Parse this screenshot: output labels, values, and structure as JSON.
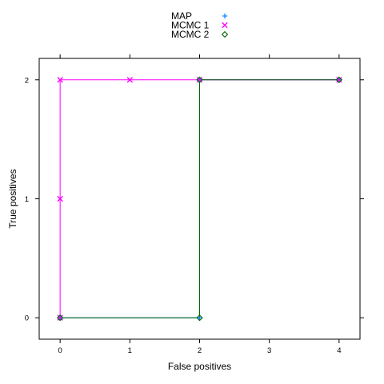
{
  "chart_data": {
    "type": "line",
    "xlabel": "False positives",
    "ylabel": "True positives",
    "xlim": [
      -0.3,
      4.3
    ],
    "ylim": [
      -0.18,
      2.18
    ],
    "x_ticks": [
      0,
      1,
      2,
      3,
      4
    ],
    "y_ticks": [
      0,
      1,
      2
    ],
    "x_tick_labels": [
      "0",
      "1",
      "2",
      "3",
      "4"
    ],
    "y_tick_labels": [
      "0",
      "1",
      "2"
    ],
    "grid": false,
    "legend_position": "top",
    "legend": [
      "MAP",
      "MCMC 1",
      "MCMC 2"
    ],
    "series": [
      {
        "name": "MAP",
        "color": "#0080ff",
        "marker": "plus",
        "points": [
          [
            0,
            0
          ],
          [
            2,
            0
          ],
          [
            2,
            2
          ],
          [
            4,
            2
          ]
        ]
      },
      {
        "name": "MCMC 1",
        "color": "#ff00ff",
        "marker": "cross",
        "points": [
          [
            0,
            0
          ],
          [
            0,
            1
          ],
          [
            0,
            2
          ],
          [
            1,
            2
          ],
          [
            2,
            2
          ],
          [
            4,
            2
          ]
        ]
      },
      {
        "name": "MCMC 2",
        "color": "#006400",
        "marker": "diamond",
        "points": [
          [
            0,
            0
          ],
          [
            2,
            0
          ],
          [
            2,
            2
          ],
          [
            4,
            2
          ]
        ]
      }
    ]
  }
}
